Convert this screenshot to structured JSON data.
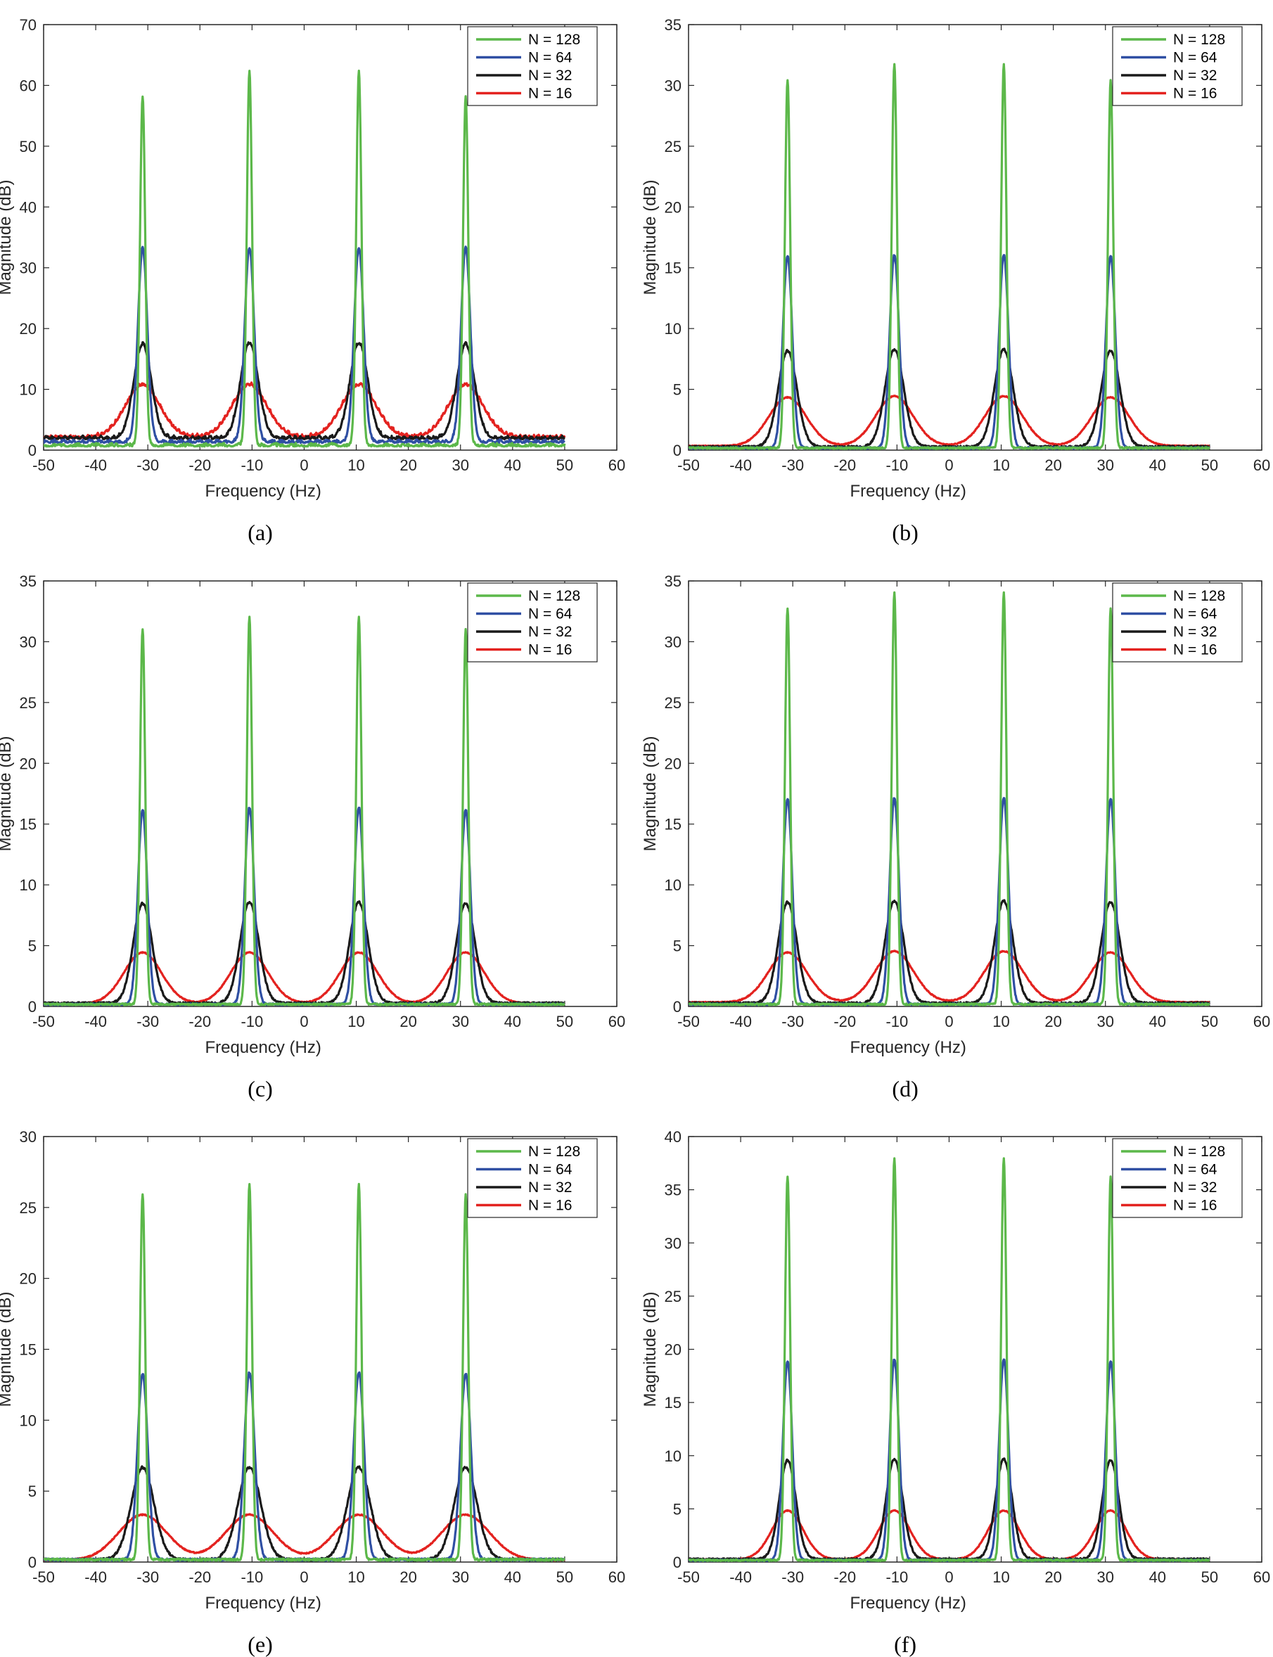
{
  "colors": {
    "series": [
      "#5cb84a",
      "#2f4fa3",
      "#1a1a1a",
      "#e3221f"
    ],
    "axis": "#262626"
  },
  "chart_data": [
    {
      "type": "line",
      "panel": "(a)",
      "xlabel": "Frequency (Hz)",
      "ylabel": "Magnitude (dB)",
      "xlim": [
        -50,
        60
      ],
      "ylim": [
        0,
        70
      ],
      "xticks": [
        -50,
        -40,
        -30,
        -20,
        -10,
        0,
        10,
        20,
        30,
        40,
        50,
        60
      ],
      "yticks": [
        0,
        10,
        20,
        30,
        40,
        50,
        60,
        70
      ],
      "legend": [
        "N = 128",
        "N = 64",
        "N = 32",
        "N = 16"
      ],
      "legend_position": "top-right",
      "peak_frequencies": [
        -31,
        -10.5,
        10.5,
        31
      ],
      "series": [
        {
          "name": "N = 128",
          "peaks": [
            57.5,
            61.8,
            61.8,
            57.5
          ],
          "width_hz": 0.5,
          "floor": 0.6
        },
        {
          "name": "N = 64",
          "peaks": [
            32,
            32,
            32,
            32
          ],
          "width_hz": 0.9,
          "floor": 1.2
        },
        {
          "name": "N = 32",
          "peaks": [
            15.5,
            15.7,
            15.7,
            15.5
          ],
          "width_hz": 1.7,
          "floor": 1.8
        },
        {
          "name": "N = 16",
          "peaks": [
            8.6,
            8.6,
            8.6,
            8.6
          ],
          "width_hz": 3.3,
          "floor": 2.0
        }
      ]
    },
    {
      "type": "line",
      "panel": "(b)",
      "xlabel": "Frequency (Hz)",
      "ylabel": "Magnitude (dB)",
      "xlim": [
        -50,
        60
      ],
      "ylim": [
        0,
        35
      ],
      "xticks": [
        -50,
        -40,
        -30,
        -20,
        -10,
        0,
        10,
        20,
        30,
        40,
        50,
        60
      ],
      "yticks": [
        0,
        5,
        10,
        15,
        20,
        25,
        30,
        35
      ],
      "legend": [
        "N = 128",
        "N = 64",
        "N = 32",
        "N = 16"
      ],
      "legend_position": "top-right",
      "peak_frequencies": [
        -31,
        -10.5,
        10.5,
        31
      ],
      "series": [
        {
          "name": "N = 128",
          "peaks": [
            30.3,
            31.6,
            31.6,
            30.3
          ],
          "width_hz": 0.5,
          "floor": 0.1
        },
        {
          "name": "N = 64",
          "peaks": [
            15.8,
            15.9,
            15.9,
            15.8
          ],
          "width_hz": 0.9,
          "floor": 0.1
        },
        {
          "name": "N = 32",
          "peaks": [
            7.9,
            8.0,
            8.0,
            7.9
          ],
          "width_hz": 1.8,
          "floor": 0.2
        },
        {
          "name": "N = 16",
          "peaks": [
            4.0,
            4.1,
            4.1,
            4.0
          ],
          "width_hz": 3.6,
          "floor": 0.3
        }
      ]
    },
    {
      "type": "line",
      "panel": "(c)",
      "xlabel": "Frequency (Hz)",
      "ylabel": "Magnitude (dB)",
      "xlim": [
        -50,
        60
      ],
      "ylim": [
        0,
        35
      ],
      "xticks": [
        -50,
        -40,
        -30,
        -20,
        -10,
        0,
        10,
        20,
        30,
        40,
        50,
        60
      ],
      "yticks": [
        0,
        5,
        10,
        15,
        20,
        25,
        30,
        35
      ],
      "legend": [
        "N = 128",
        "N = 64",
        "N = 32",
        "N = 16"
      ],
      "legend_position": "top-right",
      "peak_frequencies": [
        -31,
        -10.5,
        10.5,
        31
      ],
      "series": [
        {
          "name": "N = 128",
          "peaks": [
            30.9,
            31.9,
            31.9,
            30.9
          ],
          "width_hz": 0.5,
          "floor": 0.1
        },
        {
          "name": "N = 64",
          "peaks": [
            16.0,
            16.2,
            16.2,
            16.0
          ],
          "width_hz": 0.9,
          "floor": 0.1
        },
        {
          "name": "N = 32",
          "peaks": [
            8.2,
            8.3,
            8.3,
            8.2
          ],
          "width_hz": 1.8,
          "floor": 0.2
        },
        {
          "name": "N = 16",
          "peaks": [
            4.2,
            4.2,
            4.2,
            4.2
          ],
          "width_hz": 3.6,
          "floor": 0.2
        }
      ]
    },
    {
      "type": "line",
      "panel": "(d)",
      "xlabel": "Frequency (Hz)",
      "ylabel": "Magnitude (dB)",
      "xlim": [
        -50,
        60
      ],
      "ylim": [
        0,
        35
      ],
      "xticks": [
        -50,
        -40,
        -30,
        -20,
        -10,
        0,
        10,
        20,
        30,
        40,
        50,
        60
      ],
      "yticks": [
        0,
        5,
        10,
        15,
        20,
        25,
        30,
        35
      ],
      "legend": [
        "N = 128",
        "N = 64",
        "N = 32",
        "N = 16"
      ],
      "legend_position": "top-right",
      "peak_frequencies": [
        -31,
        -10.5,
        10.5,
        31
      ],
      "series": [
        {
          "name": "N = 128",
          "peaks": [
            32.6,
            33.9,
            33.9,
            32.6
          ],
          "width_hz": 0.5,
          "floor": 0.1
        },
        {
          "name": "N = 64",
          "peaks": [
            16.9,
            17.0,
            17.0,
            16.9
          ],
          "width_hz": 0.9,
          "floor": 0.1
        },
        {
          "name": "N = 32",
          "peaks": [
            8.3,
            8.4,
            8.4,
            8.3
          ],
          "width_hz": 1.8,
          "floor": 0.2
        },
        {
          "name": "N = 16",
          "peaks": [
            4.1,
            4.2,
            4.2,
            4.1
          ],
          "width_hz": 3.7,
          "floor": 0.3
        }
      ]
    },
    {
      "type": "line",
      "panel": "(e)",
      "xlabel": "Frequency (Hz)",
      "ylabel": "Magnitude (dB)",
      "xlim": [
        -50,
        60
      ],
      "ylim": [
        0,
        30
      ],
      "xticks": [
        -50,
        -40,
        -30,
        -20,
        -10,
        0,
        10,
        20,
        30,
        40,
        50,
        60
      ],
      "yticks": [
        0,
        5,
        10,
        15,
        20,
        25,
        30
      ],
      "legend": [
        "N = 128",
        "N = 64",
        "N = 32",
        "N = 16"
      ],
      "legend_position": "top-right",
      "peak_frequencies": [
        -31,
        -10.5,
        10.5,
        31
      ],
      "series": [
        {
          "name": "N = 128",
          "peaks": [
            25.8,
            26.5,
            26.5,
            25.8
          ],
          "width_hz": 0.5,
          "floor": 0.1
        },
        {
          "name": "N = 64",
          "peaks": [
            13.1,
            13.2,
            13.2,
            13.1
          ],
          "width_hz": 1.0,
          "floor": 0.1
        },
        {
          "name": "N = 32",
          "peaks": [
            6.5,
            6.5,
            6.5,
            6.5
          ],
          "width_hz": 2.2,
          "floor": 0.1
        },
        {
          "name": "N = 16",
          "peaks": [
            3.2,
            3.2,
            3.2,
            3.2
          ],
          "width_hz": 4.6,
          "floor": 0.1
        }
      ]
    },
    {
      "type": "line",
      "panel": "(f)",
      "xlabel": "Frequency (Hz)",
      "ylabel": "Magnitude (dB)",
      "xlim": [
        -50,
        60
      ],
      "ylim": [
        0,
        40
      ],
      "xticks": [
        -50,
        -40,
        -30,
        -20,
        -10,
        0,
        10,
        20,
        30,
        40,
        50,
        60
      ],
      "yticks": [
        0,
        5,
        10,
        15,
        20,
        25,
        30,
        35,
        40
      ],
      "legend": [
        "N = 128",
        "N = 64",
        "N = 32",
        "N = 16"
      ],
      "legend_position": "top-right",
      "peak_frequencies": [
        -31,
        -10.5,
        10.5,
        31
      ],
      "series": [
        {
          "name": "N = 128",
          "peaks": [
            36.1,
            37.8,
            37.8,
            36.1
          ],
          "width_hz": 0.5,
          "floor": 0.1
        },
        {
          "name": "N = 64",
          "peaks": [
            18.7,
            18.9,
            18.9,
            18.7
          ],
          "width_hz": 0.9,
          "floor": 0.1
        },
        {
          "name": "N = 32",
          "peaks": [
            9.3,
            9.4,
            9.4,
            9.3
          ],
          "width_hz": 1.6,
          "floor": 0.2
        },
        {
          "name": "N = 16",
          "peaks": [
            4.6,
            4.6,
            4.6,
            4.6
          ],
          "width_hz": 3.0,
          "floor": 0.2
        }
      ]
    }
  ]
}
